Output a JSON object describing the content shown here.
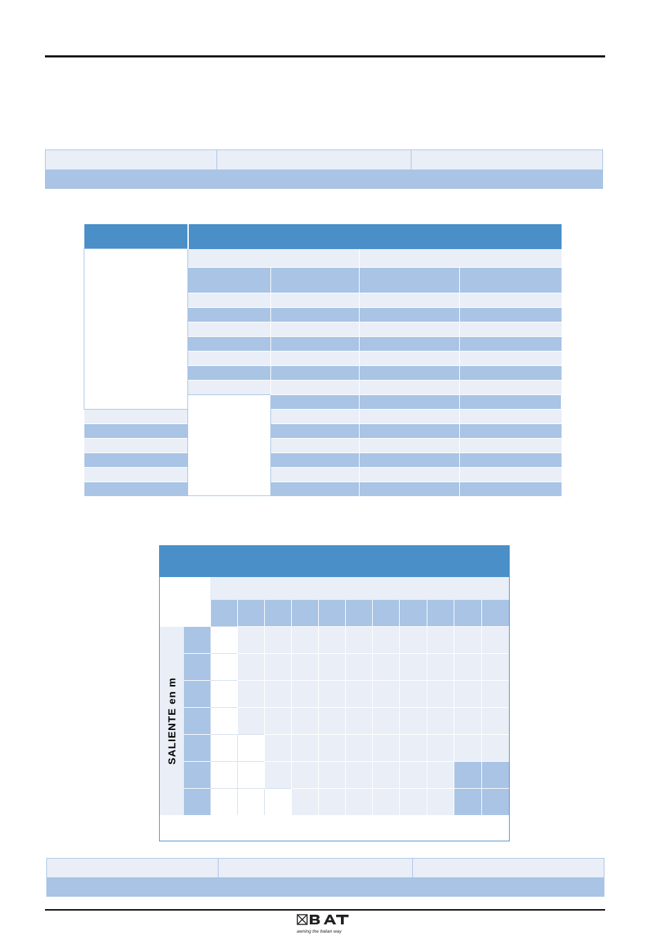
{
  "grid_table": {
    "vertical_label": "SALIENTE en m"
  },
  "footer": {
    "logo": {
      "brand": "BAT",
      "tagline": "awning the Italian way"
    }
  },
  "colors": {
    "header_blue": "#4a8fc8",
    "band_light": "#e9eef7",
    "band_mid": "#a9c4e4"
  }
}
